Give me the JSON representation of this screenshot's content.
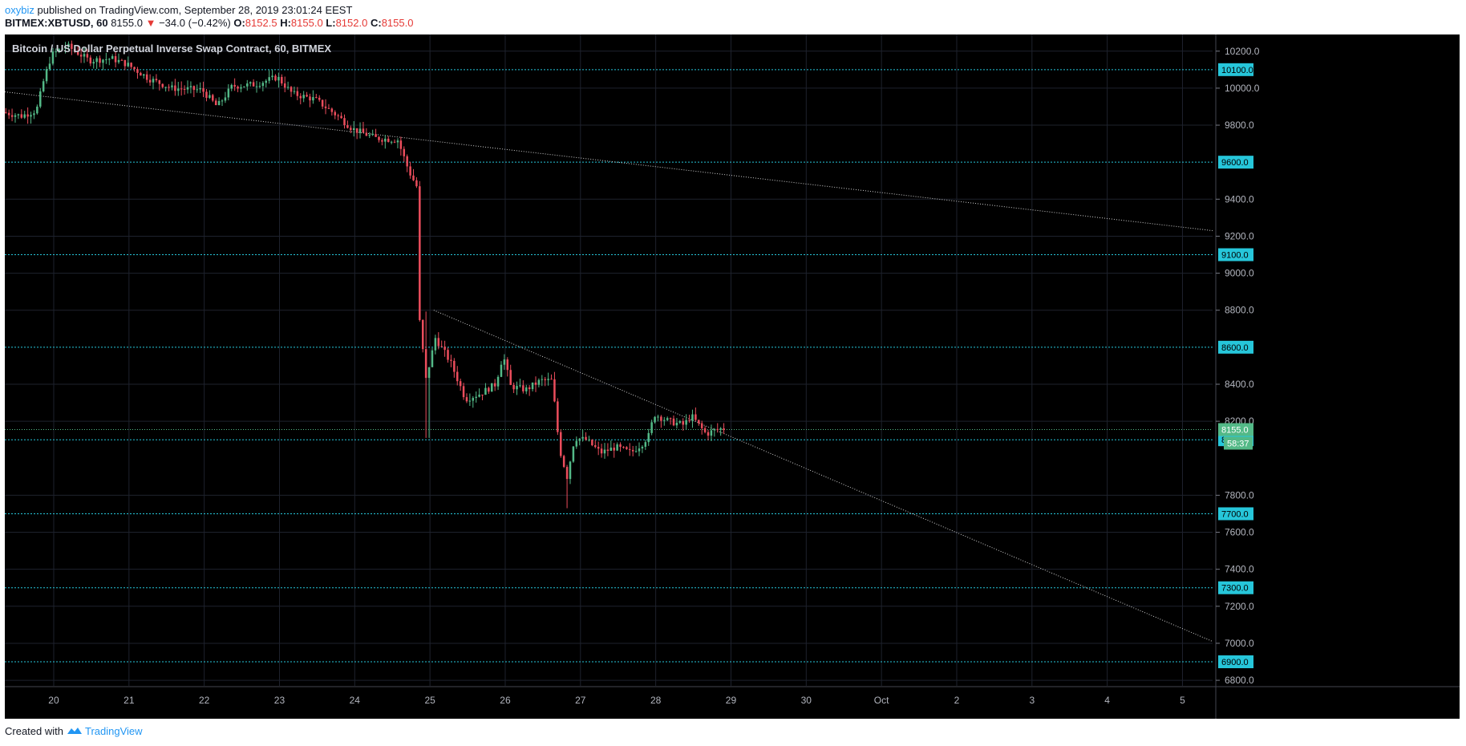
{
  "header": {
    "author": "oxybiz",
    "published_text": "published on TradingView.com, September 28, 2019 23:01:24 EEST",
    "symbol": "BITMEX:XBTUSD, 60",
    "last_price": "8155.0",
    "change": "−34.0 (−0.42%)",
    "change_arrow": "▼",
    "open_label": "O:",
    "open": "8152.5",
    "high_label": "H:",
    "high": "8155.0",
    "low_label": "L:",
    "low": "8152.0",
    "close_label": "C:",
    "close": "8155.0"
  },
  "footer": {
    "created_with": "Created with",
    "brand": "TradingView"
  },
  "colors": {
    "up": "#53b987",
    "down": "#eb4d5c",
    "level": "#26c6da",
    "background": "#000000",
    "trendline": "#cfcfcf",
    "last_price_bg": "#53b987"
  },
  "chart_data": {
    "type": "candlestick",
    "title": "Bitcoin / US Dollar Perpetual Inverse Swap Contract, 60, BITMEX",
    "x_tick_labels": [
      "20",
      "21",
      "22",
      "23",
      "24",
      "25",
      "26",
      "27",
      "28",
      "29",
      "30",
      "Oct",
      "2",
      "3",
      "4",
      "5"
    ],
    "x_range_days": [
      19.35,
      35.4
    ],
    "y_tick_labels": [
      "10200.0",
      "10000.0",
      "9800.0",
      "9400.0",
      "9200.0",
      "9000.0",
      "8800.0",
      "8400.0",
      "8200.0",
      "7800.0",
      "7600.0",
      "7400.0",
      "7200.0",
      "7000.0",
      "6800.0"
    ],
    "ylim": [
      6770,
      10290
    ],
    "grid": true,
    "horizontal_levels": [
      {
        "value": 10100,
        "label": "10100.0"
      },
      {
        "value": 9600,
        "label": "9600.0"
      },
      {
        "value": 9100,
        "label": "9100.0"
      },
      {
        "value": 8600,
        "label": "8600.0"
      },
      {
        "value": 8100,
        "label": "8100.0"
      },
      {
        "value": 7700,
        "label": "7700.0"
      },
      {
        "value": 7300,
        "label": "7300.0"
      },
      {
        "value": 6900,
        "label": "6900.0"
      }
    ],
    "trendlines": [
      {
        "x1": 19.35,
        "y1": 9980,
        "x2": 35.4,
        "y2": 9230
      },
      {
        "x1": 25.05,
        "y1": 8800,
        "x2": 35.4,
        "y2": 7010
      }
    ],
    "last_price": {
      "value": 8155.0,
      "label": "8155.0",
      "countdown": "58:37"
    },
    "series": [
      {
        "name": "XBTUSD",
        "anchors": [
          [
            19.35,
            9870
          ],
          [
            19.6,
            9850
          ],
          [
            19.8,
            9880
          ],
          [
            19.9,
            10050
          ],
          [
            20.0,
            10180
          ],
          [
            20.2,
            10230
          ],
          [
            20.5,
            10150
          ],
          [
            20.8,
            10160
          ],
          [
            21.0,
            10130
          ],
          [
            21.3,
            10050
          ],
          [
            21.6,
            10000
          ],
          [
            22.0,
            9990
          ],
          [
            22.2,
            9900
          ],
          [
            22.4,
            10010
          ],
          [
            22.7,
            10020
          ],
          [
            23.0,
            10060
          ],
          [
            23.2,
            9970
          ],
          [
            23.5,
            9940
          ],
          [
            23.8,
            9850
          ],
          [
            24.0,
            9780
          ],
          [
            24.3,
            9730
          ],
          [
            24.6,
            9720
          ],
          [
            24.75,
            9550
          ],
          [
            24.85,
            9470
          ],
          [
            24.9,
            8590
          ],
          [
            24.95,
            8380
          ],
          [
            25.1,
            8650
          ],
          [
            25.3,
            8520
          ],
          [
            25.5,
            8320
          ],
          [
            25.7,
            8350
          ],
          [
            25.9,
            8400
          ],
          [
            26.0,
            8560
          ],
          [
            26.1,
            8390
          ],
          [
            26.3,
            8370
          ],
          [
            26.5,
            8420
          ],
          [
            26.65,
            8420
          ],
          [
            26.75,
            8050
          ],
          [
            26.85,
            7900
          ],
          [
            26.95,
            8110
          ],
          [
            27.1,
            8100
          ],
          [
            27.3,
            8030
          ],
          [
            27.5,
            8060
          ],
          [
            27.7,
            8030
          ],
          [
            27.85,
            8080
          ],
          [
            27.95,
            8130
          ],
          [
            28.0,
            8240
          ],
          [
            28.2,
            8200
          ],
          [
            28.4,
            8180
          ],
          [
            28.5,
            8230
          ],
          [
            28.6,
            8180
          ],
          [
            28.7,
            8130
          ],
          [
            28.8,
            8150
          ],
          [
            28.9,
            8160
          ]
        ]
      }
    ]
  }
}
